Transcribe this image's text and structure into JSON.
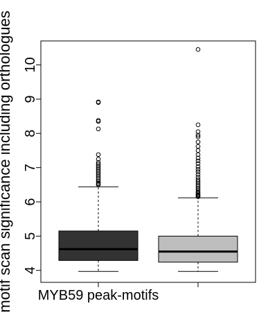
{
  "chart_data": {
    "type": "box",
    "title": "",
    "ylabel": "motif scan significance including orthologues",
    "xlabel": "",
    "ylim": [
      3.65,
      10.7
    ],
    "yticks": [
      4,
      5,
      6,
      7,
      8,
      9,
      10
    ],
    "categories": [
      "MYB59 peak-motifs",
      ""
    ],
    "series": [
      {
        "color": "#333333",
        "whisker_low": 3.97,
        "q1": 4.29,
        "median": 4.62,
        "q3": 5.15,
        "whisker_high": 6.44,
        "outliers": [
          6.5,
          6.52,
          6.55,
          6.6,
          6.65,
          6.7,
          6.75,
          6.8,
          6.85,
          6.9,
          6.95,
          7.0,
          7.05,
          7.1,
          7.15,
          7.25,
          7.38,
          8.13,
          8.35,
          8.38,
          8.9,
          8.92
        ]
      },
      {
        "color": "#bebebe",
        "whisker_low": 3.97,
        "q1": 4.24,
        "median": 4.55,
        "q3": 5.0,
        "whisker_high": 6.12,
        "outliers": [
          6.15,
          6.18,
          6.2,
          6.23,
          6.27,
          6.3,
          6.35,
          6.4,
          6.45,
          6.5,
          6.55,
          6.6,
          6.65,
          6.72,
          6.8,
          6.88,
          6.95,
          7.03,
          7.12,
          7.2,
          7.28,
          7.38,
          7.5,
          7.62,
          7.75,
          7.9,
          7.95,
          8.05,
          8.25,
          10.45
        ]
      }
    ]
  }
}
